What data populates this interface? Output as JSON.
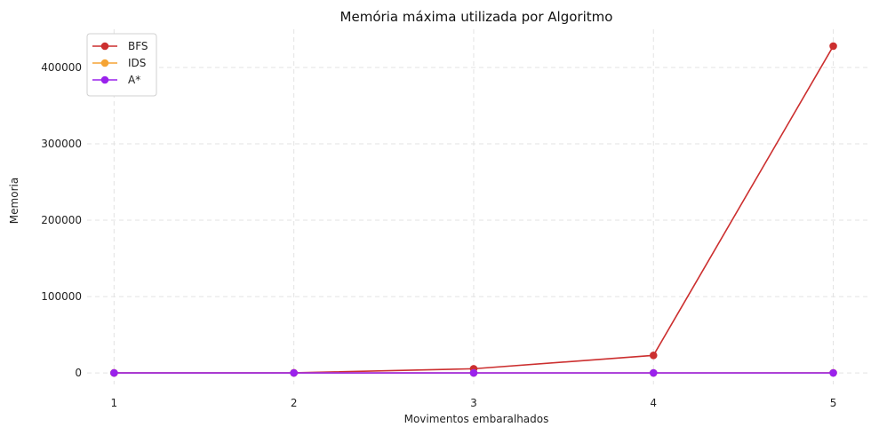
{
  "chart_data": {
    "type": "line",
    "title": "Memória máxima utilizada por Algoritmo",
    "xlabel": "Movimentos embaralhados",
    "ylabel": "Memoria",
    "x": [
      1,
      2,
      3,
      4,
      5
    ],
    "x_tick_labels": [
      "1",
      "2",
      "3",
      "4",
      "5"
    ],
    "y_ticks": [
      0,
      100000,
      200000,
      300000,
      400000
    ],
    "y_tick_labels": [
      "0",
      "100000",
      "200000",
      "300000",
      "400000"
    ],
    "xlim": [
      0.85,
      5.2
    ],
    "ylim": [
      -15000,
      450000
    ],
    "grid": true,
    "legend_position": "top-left",
    "series": [
      {
        "name": "BFS",
        "color": "#cc2f2f",
        "values": [
          10,
          150,
          5500,
          23000,
          428000
        ]
      },
      {
        "name": "IDS",
        "color": "#f5a435",
        "values": [
          5,
          15,
          40,
          80,
          150
        ]
      },
      {
        "name": "A*",
        "color": "#9a22ec",
        "values": [
          5,
          12,
          25,
          40,
          60
        ]
      }
    ]
  }
}
